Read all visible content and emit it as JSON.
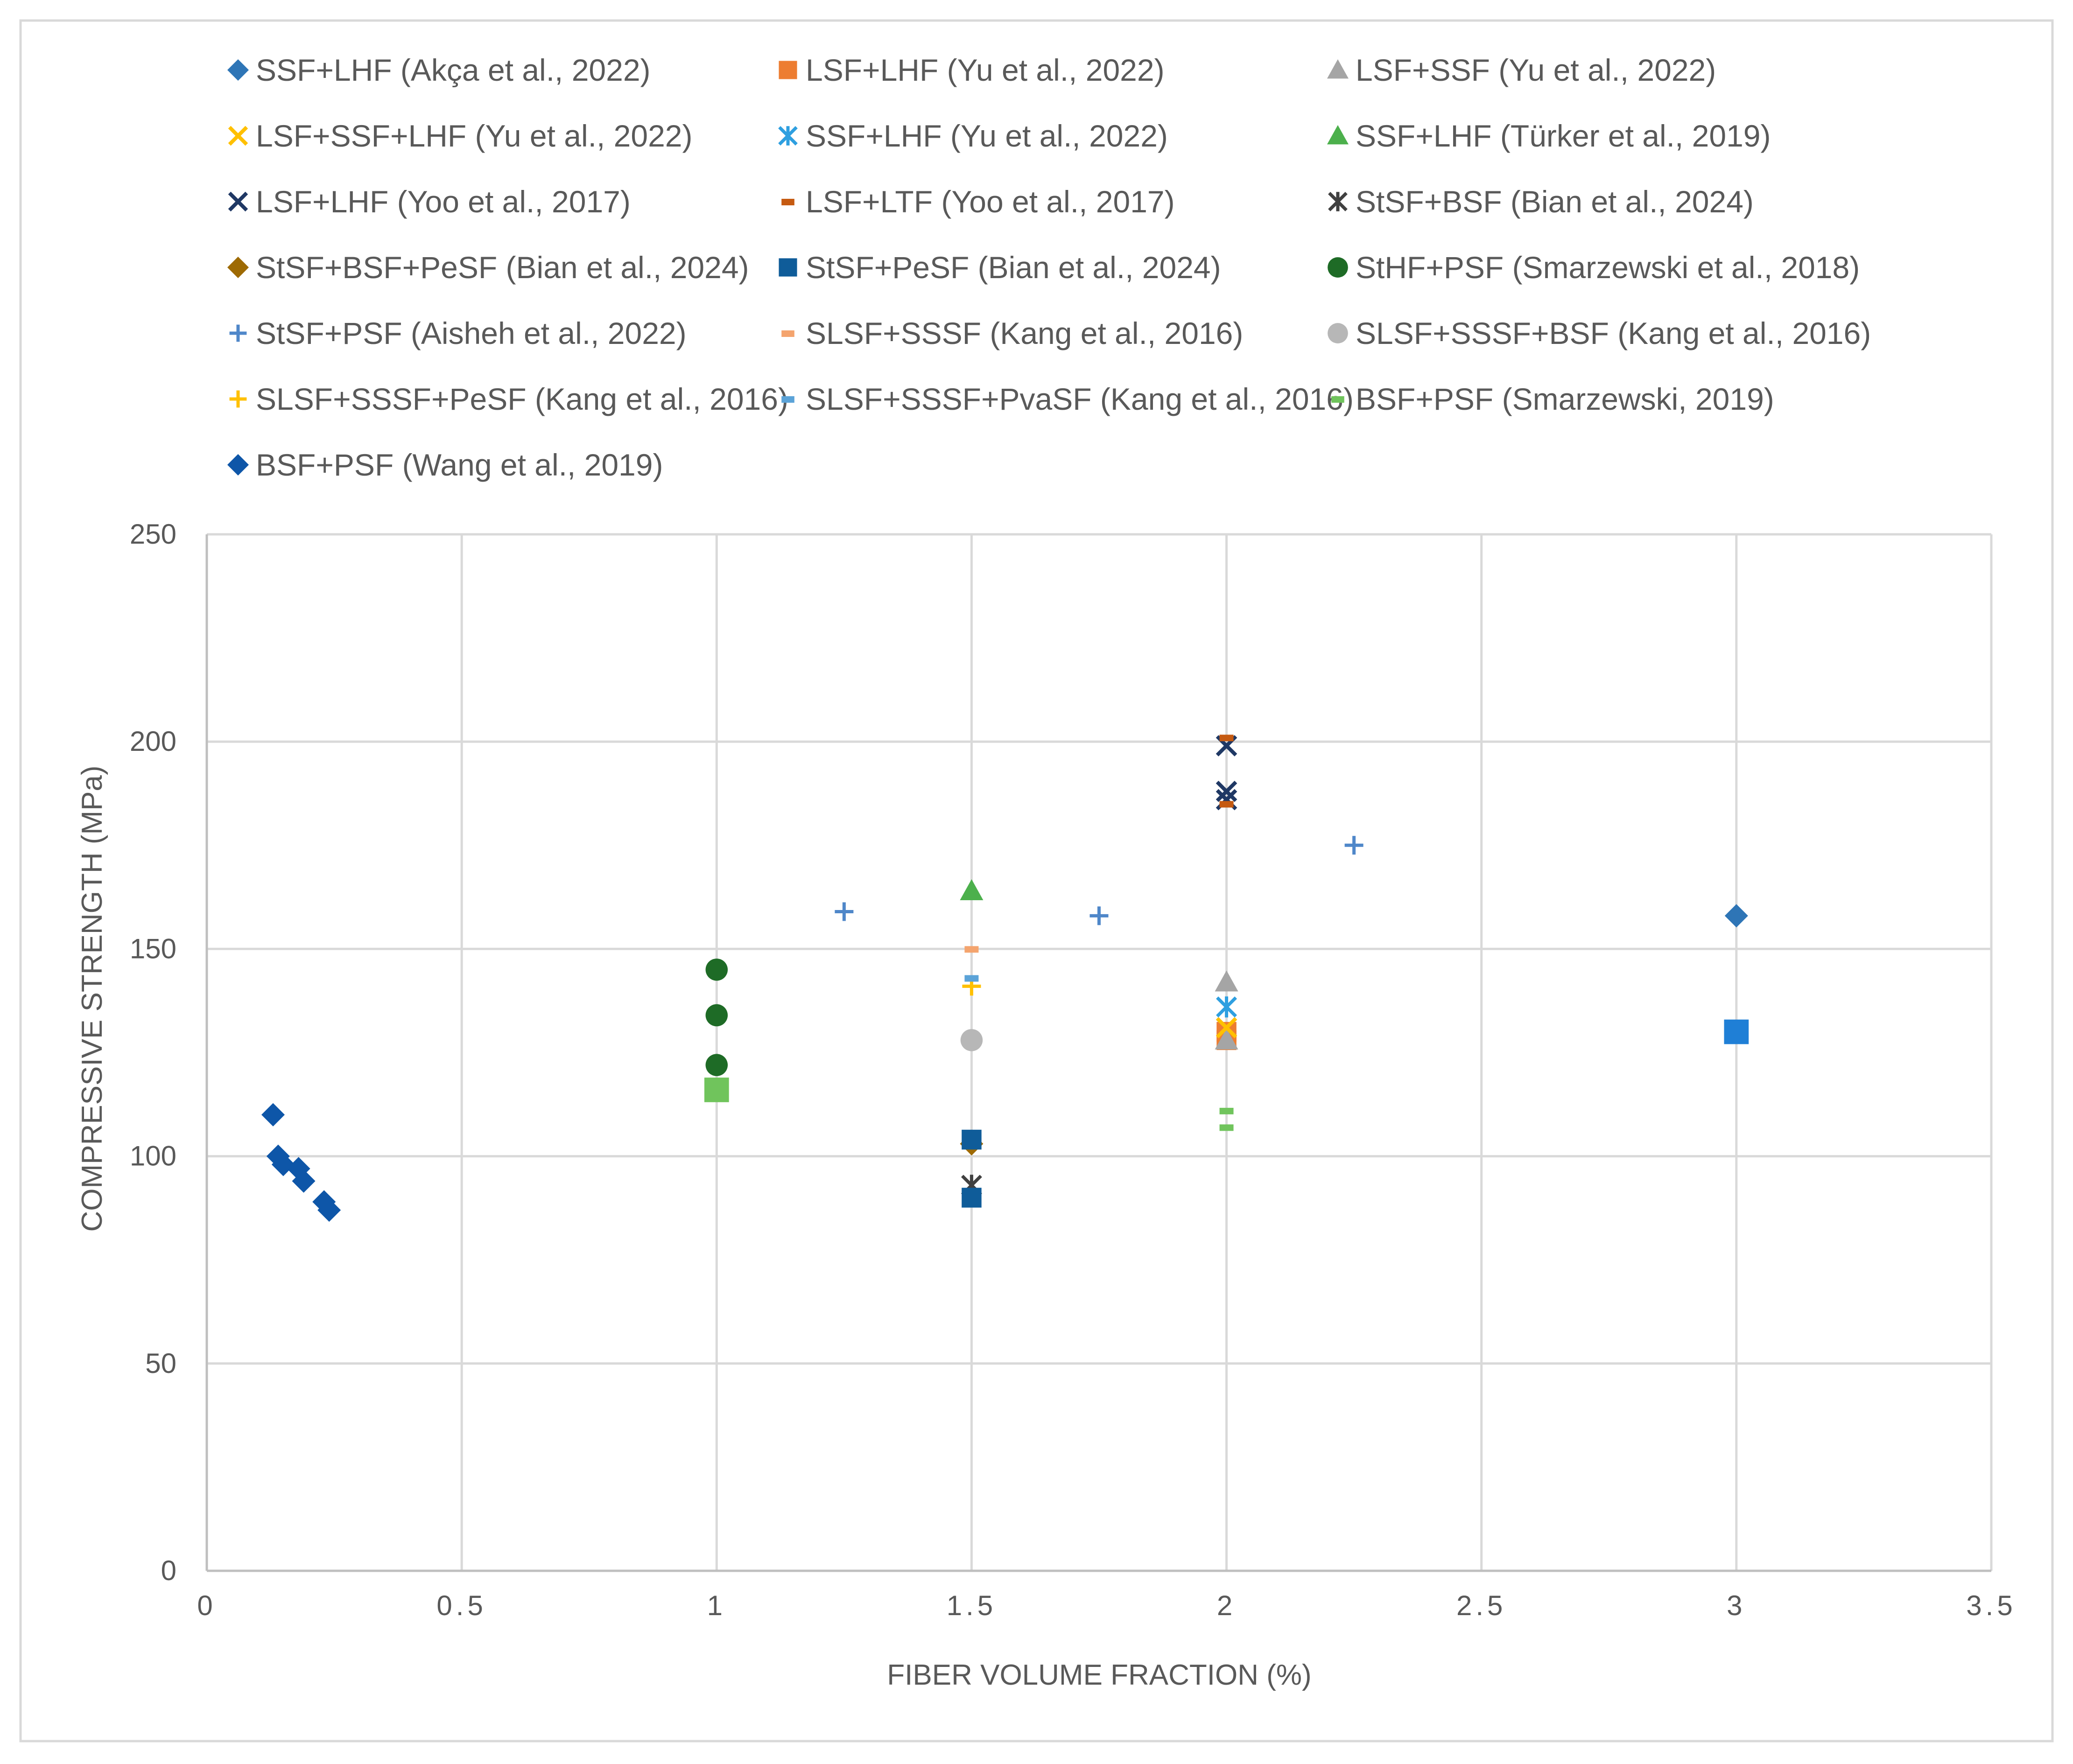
{
  "chart_data": {
    "type": "scatter",
    "title": "",
    "xlabel": "FIBER VOLUME FRACTION (%)",
    "ylabel": "COMPRESSIVE STRENGTH (MPa)",
    "xlim": [
      0,
      3.5
    ],
    "ylim": [
      0,
      250
    ],
    "x_ticks": [
      0,
      0.5,
      1,
      1.5,
      2,
      2.5,
      3,
      3.5
    ],
    "y_ticks": [
      0,
      50,
      100,
      150,
      200,
      250
    ],
    "x_tick_labels": [
      "0",
      "0.5",
      "1",
      "1.5",
      "2",
      "2.5",
      "3",
      "3.5"
    ],
    "y_tick_labels": [
      "0",
      "50",
      "100",
      "150",
      "200",
      "250"
    ],
    "grid": true,
    "legend_position": "top",
    "series": [
      {
        "name": "SSF+LHF (Akça et al., 2022)",
        "marker": "diamond",
        "color": "#2E75B6",
        "points": [
          [
            3,
            158
          ]
        ]
      },
      {
        "name": "LSF+LHF (Yu et al., 2022)",
        "marker": "square",
        "color": "#ED7D31",
        "points": [
          [
            2,
            130
          ],
          [
            2,
            128
          ]
        ]
      },
      {
        "name": "LSF+SSF (Yu et al., 2022)",
        "marker": "triangle",
        "color": "#A5A5A5",
        "points": [
          [
            2,
            142
          ],
          [
            2,
            128
          ]
        ]
      },
      {
        "name": "LSF+SSF+LHF (Yu et al., 2022)",
        "marker": "x",
        "color": "#FFC000",
        "points": [
          [
            2,
            131
          ]
        ]
      },
      {
        "name": "SSF+LHF (Yu et al., 2022)",
        "marker": "asterisk",
        "color": "#2E9FE0",
        "points": [
          [
            2,
            136
          ]
        ]
      },
      {
        "name": "SSF+LHF (Türker et al., 2019)",
        "marker": "triangle",
        "color": "#4CB04C",
        "points": [
          [
            1.5,
            164
          ]
        ]
      },
      {
        "name": "LSF+LHF (Yoo et al., 2017)",
        "marker": "x",
        "color": "#1F3864",
        "points": [
          [
            2,
            199
          ],
          [
            2,
            188
          ],
          [
            2,
            186
          ]
        ]
      },
      {
        "name": "LSF+LTF (Yoo et al., 2017)",
        "marker": "dash",
        "color": "#C55A11",
        "points": [
          [
            2,
            201
          ],
          [
            2,
            185
          ]
        ]
      },
      {
        "name": "StSF+BSF (Bian et al., 2024)",
        "marker": "asterisk",
        "color": "#404040",
        "points": [
          [
            1.5,
            93
          ]
        ]
      },
      {
        "name": "StSF+BSF+PeSF (Bian et al., 2024)",
        "marker": "diamond",
        "color": "#9E6A03",
        "points": [
          [
            1.5,
            103
          ]
        ]
      },
      {
        "name": "StSF+PeSF (Bian et al., 2024)",
        "marker": "square",
        "color": "#0F5C99",
        "points": [
          [
            1.5,
            104
          ],
          [
            1.5,
            90
          ]
        ]
      },
      {
        "name": "StHF+PSF (Smarzewski et al., 2018)",
        "marker": "circle",
        "color": "#1E6B26",
        "points": [
          [
            1,
            145
          ],
          [
            1,
            134
          ],
          [
            1,
            122
          ]
        ]
      },
      {
        "name": "StSF+PSF (Aisheh et al., 2022)",
        "marker": "plus",
        "color": "#4F87C9",
        "points": [
          [
            1.25,
            159
          ],
          [
            1.75,
            158
          ],
          [
            2.25,
            175
          ]
        ]
      },
      {
        "name": "SLSF+SSSF (Kang et al., 2016)",
        "marker": "dash",
        "color": "#F4A46E",
        "points": [
          [
            1.5,
            150
          ]
        ]
      },
      {
        "name": "SLSF+SSSF+BSF (Kang et al., 2016)",
        "marker": "circle",
        "color": "#B7B7B7",
        "points": [
          [
            1.5,
            128
          ]
        ]
      },
      {
        "name": "SLSF+SSSF+PeSF (Kang et al., 2016)",
        "marker": "plus",
        "color": "#FFC000",
        "points": [
          [
            1.5,
            141
          ]
        ]
      },
      {
        "name": "SLSF+SSSF+PvaSF (Kang et al., 2016)",
        "marker": "dash",
        "color": "#5BA3D8",
        "points": [
          [
            1.5,
            143
          ]
        ]
      },
      {
        "name": "BSF+PSF (Smarzewski, 2019)",
        "marker": "dash",
        "color": "#70C45C",
        "points": [
          [
            2,
            111
          ],
          [
            2,
            107
          ]
        ]
      },
      {
        "name": "BSF+PSF (Wang et al., 2019)",
        "marker": "diamond",
        "color": "#0E56A8",
        "points": [
          [
            0.13,
            110
          ],
          [
            0.14,
            100
          ],
          [
            0.15,
            98
          ],
          [
            0.18,
            97
          ],
          [
            0.19,
            94
          ],
          [
            0.23,
            89
          ],
          [
            0.24,
            87
          ]
        ]
      }
    ],
    "extra_points": [
      {
        "series": "BSF+PSF (Smarzewski, 2019)",
        "marker": "square",
        "color": "#70C45C",
        "x": 1,
        "y": 116
      },
      {
        "series": "StSF+PeSF (Bian et al., 2024)",
        "marker": "square",
        "color": "#1F7FD6",
        "x": 3,
        "y": 130
      }
    ]
  }
}
